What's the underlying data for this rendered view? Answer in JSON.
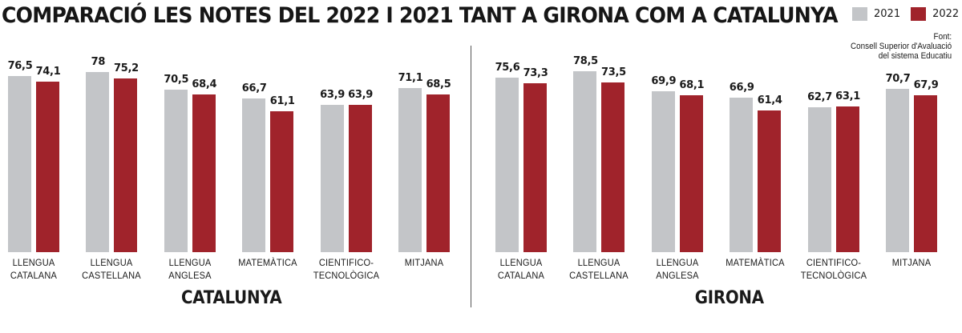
{
  "title": "COMPARACIÓ LES NOTES DEL 2022 I 2021 TANT A GIRONA COM A CATALUNYA",
  "legend": [
    {
      "label": "2021",
      "color": "#c3c5c8"
    },
    {
      "label": "2022",
      "color": "#a0232b"
    }
  ],
  "source": {
    "line1": "Font:",
    "line2": "Consell Superior d'Avaluació",
    "line3": "del sistema Educatiu"
  },
  "panels": [
    {
      "title": "CATALUNYA",
      "groups": [
        {
          "cat1": "LLENGUA",
          "cat2": "CATALANA",
          "v2021": "76,5",
          "v2022": "74,1"
        },
        {
          "cat1": "LLENGUA",
          "cat2": "CASTELLANA",
          "v2021": "78",
          "v2022": "75,2"
        },
        {
          "cat1": "LLENGUA",
          "cat2": "ANGLESA",
          "v2021": "70,5",
          "v2022": "68,4"
        },
        {
          "cat1": "MATEMÀTICA",
          "cat2": "",
          "v2021": "66,7",
          "v2022": "61,1"
        },
        {
          "cat1": "CIENTIFICO-",
          "cat2": "TECNOLÒGICA",
          "v2021": "63,9",
          "v2022": "63,9"
        },
        {
          "cat1": "MITJANA",
          "cat2": "",
          "v2021": "71,1",
          "v2022": "68,5"
        }
      ]
    },
    {
      "title": "GIRONA",
      "groups": [
        {
          "cat1": "LLENGUA",
          "cat2": "CATALANA",
          "v2021": "75,6",
          "v2022": "73,3"
        },
        {
          "cat1": "LLENGUA",
          "cat2": "CASTELLANA",
          "v2021": "78,5",
          "v2022": "73,5"
        },
        {
          "cat1": "LLENGUA",
          "cat2": "ANGLESA",
          "v2021": "69,9",
          "v2022": "68,1"
        },
        {
          "cat1": "MATEMÀTICA",
          "cat2": "",
          "v2021": "66,9",
          "v2022": "61,4"
        },
        {
          "cat1": "CIENTIFICO-",
          "cat2": "TECNOLÒGICA",
          "v2021": "62,7",
          "v2022": "63,1"
        },
        {
          "cat1": "MITJANA",
          "cat2": "",
          "v2021": "70,7",
          "v2022": "67,9"
        }
      ]
    }
  ],
  "chart_data": [
    {
      "type": "bar",
      "title": "CATALUNYA",
      "categories": [
        "LLENGUA CATALANA",
        "LLENGUA CASTELLANA",
        "LLENGUA ANGLESA",
        "MATEMÀTICA",
        "CIENTIFICO-TECNOLÒGICA",
        "MITJANA"
      ],
      "series": [
        {
          "name": "2021",
          "color": "#c3c5c8",
          "values": [
            76.5,
            78,
            70.5,
            66.7,
            63.9,
            71.1
          ]
        },
        {
          "name": "2022",
          "color": "#a0232b",
          "values": [
            74.1,
            75.2,
            68.4,
            61.1,
            63.9,
            68.5
          ]
        }
      ],
      "xlabel": "",
      "ylabel": "",
      "grid": false,
      "legend_position": "top-right"
    },
    {
      "type": "bar",
      "title": "GIRONA",
      "categories": [
        "LLENGUA CATALANA",
        "LLENGUA CASTELLANA",
        "LLENGUA ANGLESA",
        "MATEMÀTICA",
        "CIENTIFICO-TECNOLÒGICA",
        "MITJANA"
      ],
      "series": [
        {
          "name": "2021",
          "color": "#c3c5c8",
          "values": [
            75.6,
            78.5,
            69.9,
            66.9,
            62.7,
            70.7
          ]
        },
        {
          "name": "2022",
          "color": "#a0232b",
          "values": [
            73.3,
            73.5,
            68.1,
            61.4,
            63.1,
            67.9
          ]
        }
      ],
      "xlabel": "",
      "ylabel": "",
      "grid": false,
      "legend_position": "top-right"
    }
  ]
}
